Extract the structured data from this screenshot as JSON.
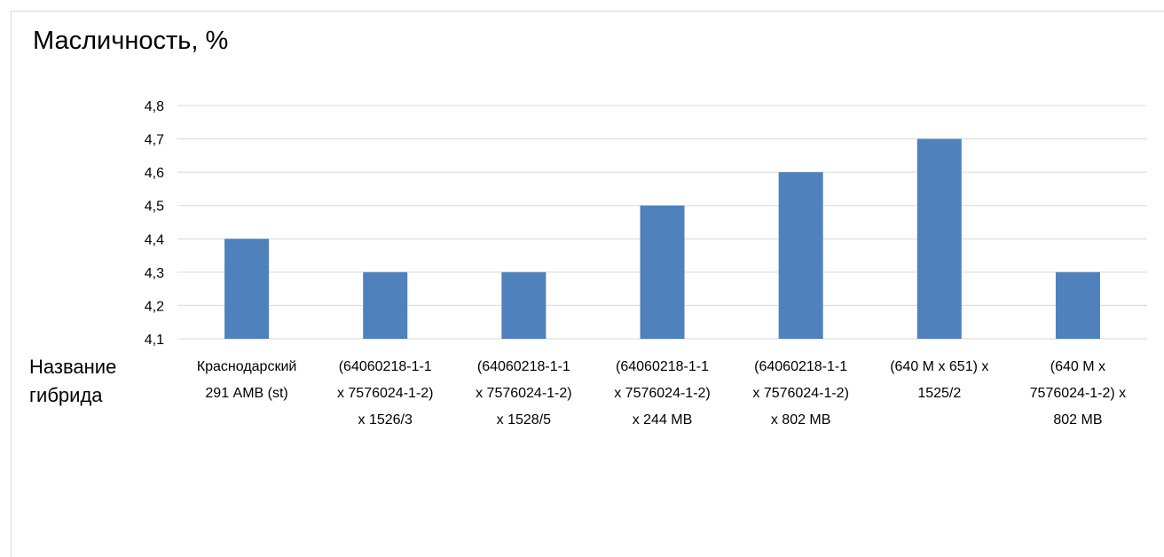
{
  "chart_data": {
    "type": "bar",
    "title": "Масличность, %",
    "xlabel": "Название гибрида",
    "ylabel": "",
    "ylim": [
      4.1,
      4.8
    ],
    "yticks": [
      "4,1",
      "4,2",
      "4,3",
      "4,4",
      "4,5",
      "4,6",
      "4,7",
      "4,8"
    ],
    "grid": true,
    "legend": "none",
    "bar_color": "#4f81bd",
    "categories": [
      [
        "Краснодарский",
        "291 АМВ (st)"
      ],
      [
        "(64060218-1-1",
        "x 7576024-1-2)",
        "x 1526/3"
      ],
      [
        "(64060218-1-1",
        "x 7576024-1-2)",
        "x 1528/5"
      ],
      [
        "(64060218-1-1",
        "x 7576024-1-2)",
        "x 244 MB"
      ],
      [
        "(64060218-1-1",
        "x 7576024-1-2)",
        "x 802 MB"
      ],
      [
        "(640 M x 651) x",
        "1525/2"
      ],
      [
        "(640 M x",
        "7576024-1-2) x",
        "802 MB"
      ]
    ],
    "values": [
      4.4,
      4.3,
      4.3,
      4.5,
      4.6,
      4.7,
      4.3
    ]
  }
}
